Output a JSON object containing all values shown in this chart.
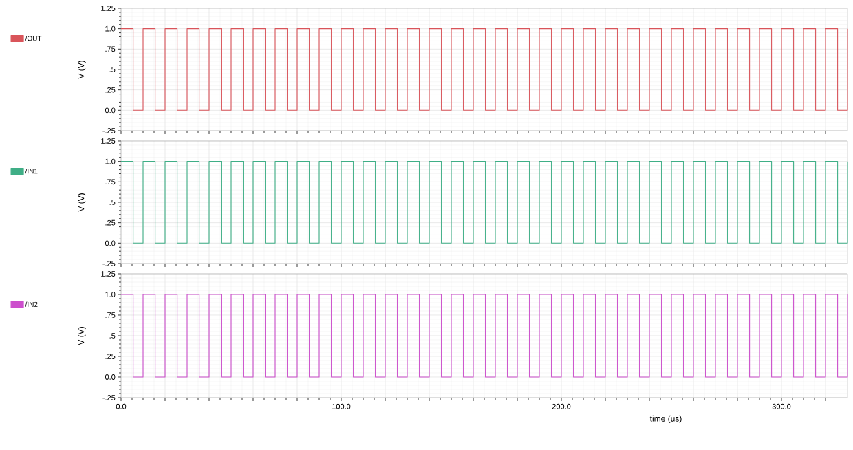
{
  "chart_data": [
    {
      "type": "step",
      "ylabel": "V (V)",
      "legend": "left",
      "grid": true,
      "tick_labels": "y",
      "xlim": [
        0,
        330
      ],
      "ylim": [
        -0.25,
        1.25
      ],
      "xticks": [
        {
          "value": 0,
          "label": null
        },
        {
          "value": 20,
          "label": null
        },
        {
          "value": 40,
          "label": null
        },
        {
          "value": 60,
          "label": null
        },
        {
          "value": 80,
          "label": null
        },
        {
          "value": 100,
          "label": null
        },
        {
          "value": 120,
          "label": null
        },
        {
          "value": 140,
          "label": null
        },
        {
          "value": 160,
          "label": null
        },
        {
          "value": 180,
          "label": null
        },
        {
          "value": 200,
          "label": null
        },
        {
          "value": 220,
          "label": null
        },
        {
          "value": 240,
          "label": null
        },
        {
          "value": 260,
          "label": null
        },
        {
          "value": 280,
          "label": null
        },
        {
          "value": 300,
          "label": null
        },
        {
          "value": 320,
          "label": null
        }
      ],
      "yticks": [
        {
          "value": -0.25,
          "label": "-.25"
        },
        {
          "value": 0,
          "label": "0.0"
        },
        {
          "value": 0.25,
          "label": ".25"
        },
        {
          "value": 0.5,
          "label": ".5"
        },
        {
          "value": 0.75,
          "label": ".75"
        },
        {
          "value": 1,
          "label": "1.0"
        },
        {
          "value": 1.25,
          "label": "1.25"
        }
      ],
      "x": [
        0,
        5.5,
        10,
        15.5,
        20,
        25.5,
        30,
        35.5,
        40,
        45.5,
        50,
        55.5,
        60,
        65.5,
        70,
        75.5,
        80,
        85.5,
        90,
        95.5,
        100,
        105.5,
        110,
        115.5,
        120,
        125.5,
        130,
        135.5,
        140,
        145.5,
        150,
        155.5,
        160,
        165.5,
        170,
        175.5,
        180,
        185.5,
        190,
        195.5,
        200,
        205.5,
        210,
        215.5,
        220,
        225.5,
        230,
        235.5,
        240,
        245.5,
        250,
        255.5,
        260,
        265.5,
        270,
        275.5,
        280,
        285.5,
        290,
        295.5,
        300,
        305.5,
        310,
        315.5,
        320,
        325.5,
        330
      ],
      "series": [
        {
          "name": "/OUT",
          "color": "#d9545a",
          "values": [
            1,
            0,
            1,
            0,
            1,
            0,
            1,
            0,
            1,
            0,
            1,
            0,
            1,
            0,
            1,
            0,
            1,
            0,
            1,
            0,
            1,
            0,
            1,
            0,
            1,
            0,
            1,
            0,
            1,
            0,
            1,
            0,
            1,
            0,
            1,
            0,
            1,
            0,
            1,
            0,
            1,
            0,
            1,
            0,
            1,
            0,
            1,
            0,
            1,
            0,
            1,
            0,
            1,
            0,
            1,
            0,
            1,
            0,
            1,
            0,
            1,
            0,
            1,
            0,
            1,
            0,
            1
          ]
        }
      ]
    },
    {
      "type": "step",
      "ylabel": "V (V)",
      "legend": "left",
      "grid": true,
      "tick_labels": "y",
      "xlim": [
        0,
        330
      ],
      "ylim": [
        -0.25,
        1.25
      ],
      "xticks": [
        {
          "value": 0,
          "label": null
        },
        {
          "value": 20,
          "label": null
        },
        {
          "value": 40,
          "label": null
        },
        {
          "value": 60,
          "label": null
        },
        {
          "value": 80,
          "label": null
        },
        {
          "value": 100,
          "label": null
        },
        {
          "value": 120,
          "label": null
        },
        {
          "value": 140,
          "label": null
        },
        {
          "value": 160,
          "label": null
        },
        {
          "value": 180,
          "label": null
        },
        {
          "value": 200,
          "label": null
        },
        {
          "value": 220,
          "label": null
        },
        {
          "value": 240,
          "label": null
        },
        {
          "value": 260,
          "label": null
        },
        {
          "value": 280,
          "label": null
        },
        {
          "value": 300,
          "label": null
        },
        {
          "value": 320,
          "label": null
        }
      ],
      "yticks": [
        {
          "value": -0.25,
          "label": "-.25"
        },
        {
          "value": 0,
          "label": "0.0"
        },
        {
          "value": 0.25,
          "label": ".25"
        },
        {
          "value": 0.5,
          "label": ".5"
        },
        {
          "value": 0.75,
          "label": ".75"
        },
        {
          "value": 1,
          "label": "1.0"
        },
        {
          "value": 1.25,
          "label": "1.25"
        }
      ],
      "x": [
        0,
        5.5,
        10,
        15.5,
        20,
        25.5,
        30,
        35.5,
        40,
        45.5,
        50,
        55.5,
        60,
        65.5,
        70,
        75.5,
        80,
        85.5,
        90,
        95.5,
        100,
        105.5,
        110,
        115.5,
        120,
        125.5,
        130,
        135.5,
        140,
        145.5,
        150,
        155.5,
        160,
        165.5,
        170,
        175.5,
        180,
        185.5,
        190,
        195.5,
        200,
        205.5,
        210,
        215.5,
        220,
        225.5,
        230,
        235.5,
        240,
        245.5,
        250,
        255.5,
        260,
        265.5,
        270,
        275.5,
        280,
        285.5,
        290,
        295.5,
        300,
        305.5,
        310,
        315.5,
        320,
        325.5,
        330
      ],
      "series": [
        {
          "name": "/IN1",
          "color": "#3fae86",
          "values": [
            1,
            0,
            1,
            0,
            1,
            0,
            1,
            0,
            1,
            0,
            1,
            0,
            1,
            0,
            1,
            0,
            1,
            0,
            1,
            0,
            1,
            0,
            1,
            0,
            1,
            0,
            1,
            0,
            1,
            0,
            1,
            0,
            1,
            0,
            1,
            0,
            1,
            0,
            1,
            0,
            1,
            0,
            1,
            0,
            1,
            0,
            1,
            0,
            1,
            0,
            1,
            0,
            1,
            0,
            1,
            0,
            1,
            0,
            1,
            0,
            1,
            0,
            1,
            0,
            1,
            0,
            1
          ]
        }
      ]
    },
    {
      "type": "step",
      "ylabel": "V (V)",
      "xlabel": "time (us)",
      "legend": "left",
      "grid": true,
      "xlim": [
        0,
        330
      ],
      "ylim": [
        -0.25,
        1.25
      ],
      "xticks": [
        {
          "value": 0,
          "label": "0.0"
        },
        {
          "value": 20,
          "label": null
        },
        {
          "value": 40,
          "label": null
        },
        {
          "value": 60,
          "label": null
        },
        {
          "value": 80,
          "label": null
        },
        {
          "value": 100,
          "label": "100.0"
        },
        {
          "value": 120,
          "label": null
        },
        {
          "value": 140,
          "label": null
        },
        {
          "value": 160,
          "label": null
        },
        {
          "value": 180,
          "label": null
        },
        {
          "value": 200,
          "label": "200.0"
        },
        {
          "value": 220,
          "label": null
        },
        {
          "value": 240,
          "label": null
        },
        {
          "value": 260,
          "label": null
        },
        {
          "value": 280,
          "label": null
        },
        {
          "value": 300,
          "label": "300.0"
        },
        {
          "value": 320,
          "label": null
        }
      ],
      "yticks": [
        {
          "value": -0.25,
          "label": "-.25"
        },
        {
          "value": 0,
          "label": "0.0"
        },
        {
          "value": 0.25,
          "label": ".25"
        },
        {
          "value": 0.5,
          "label": ".5"
        },
        {
          "value": 0.75,
          "label": ".75"
        },
        {
          "value": 1,
          "label": "1.0"
        },
        {
          "value": 1.25,
          "label": "1.25"
        }
      ],
      "x": [
        0,
        5.5,
        10,
        15.5,
        20,
        25.5,
        30,
        35.5,
        40,
        45.5,
        50,
        55.5,
        60,
        65.5,
        70,
        75.5,
        80,
        85.5,
        90,
        95.5,
        100,
        105.5,
        110,
        115.5,
        120,
        125.5,
        130,
        135.5,
        140,
        145.5,
        150,
        155.5,
        160,
        165.5,
        170,
        175.5,
        180,
        185.5,
        190,
        195.5,
        200,
        205.5,
        210,
        215.5,
        220,
        225.5,
        230,
        235.5,
        240,
        245.5,
        250,
        255.5,
        260,
        265.5,
        270,
        275.5,
        280,
        285.5,
        290,
        295.5,
        300,
        305.5,
        310,
        315.5,
        320,
        325.5,
        330
      ],
      "series": [
        {
          "name": "/IN2",
          "color": "#cc4fcc",
          "values": [
            1,
            0,
            1,
            0,
            1,
            0,
            1,
            0,
            1,
            0,
            1,
            0,
            1,
            0,
            1,
            0,
            1,
            0,
            1,
            0,
            1,
            0,
            1,
            0,
            1,
            0,
            1,
            0,
            1,
            0,
            1,
            0,
            1,
            0,
            1,
            0,
            1,
            0,
            1,
            0,
            1,
            0,
            1,
            0,
            1,
            0,
            1,
            0,
            1,
            0,
            1,
            0,
            1,
            0,
            1,
            0,
            1,
            0,
            1,
            0,
            1,
            0,
            1,
            0,
            1,
            0,
            1
          ]
        }
      ]
    }
  ]
}
